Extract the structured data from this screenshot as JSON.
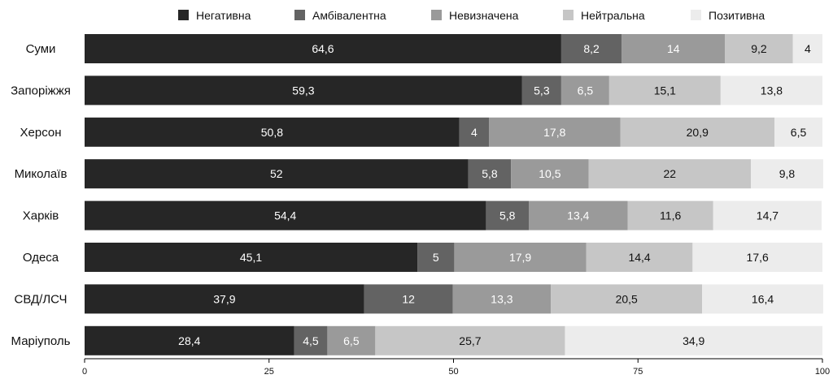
{
  "chart_data": {
    "type": "bar",
    "orientation": "horizontal",
    "stacked": true,
    "categories": [
      "Суми",
      "Запоріжжя",
      "Херсон",
      "Миколаїв",
      "Харків",
      "Одеса",
      "СВД/ЛСЧ",
      "Маріуполь"
    ],
    "series": [
      {
        "name": "Негативна",
        "color": "#262626",
        "label_color": "#ffffff",
        "values": [
          64.6,
          59.3,
          50.8,
          52,
          54.4,
          45.1,
          37.9,
          28.4
        ],
        "labels": [
          "64,6",
          "59,3",
          "50,8",
          "52",
          "54,4",
          "45,1",
          "37,9",
          "28,4"
        ]
      },
      {
        "name": "Амбівалентна",
        "color": "#636363",
        "label_color": "#ffffff",
        "values": [
          8.2,
          5.3,
          4,
          5.8,
          5.8,
          5,
          12,
          4.5
        ],
        "labels": [
          "8,2",
          "5,3",
          "4",
          "5,8",
          "5,8",
          "5",
          "12",
          "4,5"
        ]
      },
      {
        "name": "Невизначена",
        "color": "#9a9a9a",
        "label_color": "#ffffff",
        "values": [
          14,
          6.5,
          17.8,
          10.5,
          13.4,
          17.9,
          13.3,
          6.5
        ],
        "labels": [
          "14",
          "6,5",
          "17,8",
          "10,5",
          "13,4",
          "17,9",
          "13,3",
          "6,5"
        ]
      },
      {
        "name": "Нейтральна",
        "color": "#c6c6c6",
        "label_color": "#111111",
        "values": [
          9.2,
          15.1,
          20.9,
          22,
          11.6,
          14.4,
          20.5,
          25.7
        ],
        "labels": [
          "9,2",
          "15,1",
          "20,9",
          "22",
          "11,6",
          "14,4",
          "20,5",
          "25,7"
        ]
      },
      {
        "name": "Позитивна",
        "color": "#ececec",
        "label_color": "#111111",
        "values": [
          4,
          13.8,
          6.5,
          9.8,
          14.7,
          17.6,
          16.4,
          34.9
        ],
        "labels": [
          "4",
          "13,8",
          "6,5",
          "9,8",
          "14,7",
          "17,6",
          "16,4",
          "34,9"
        ]
      }
    ],
    "xlim": [
      0,
      100
    ],
    "xticks": [
      0,
      25,
      50,
      75,
      100
    ],
    "xtick_labels": [
      "0",
      "25",
      "50",
      "75",
      "100"
    ],
    "legend_position": "top",
    "grid": false
  }
}
